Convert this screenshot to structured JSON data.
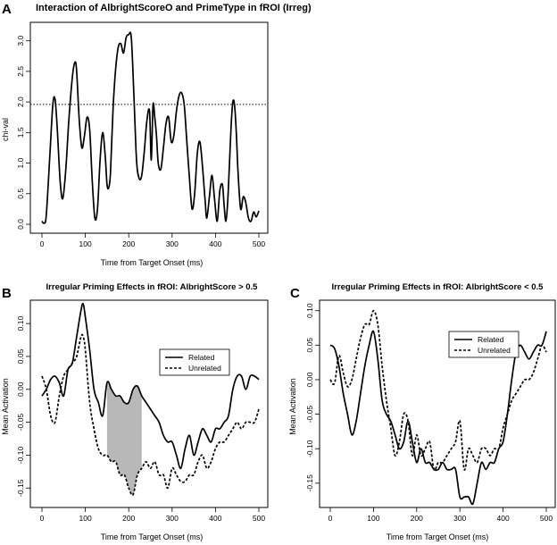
{
  "colors": {
    "line": "#000000",
    "shade": "#b8b8b8",
    "background": "#ffffff"
  },
  "chart_data": [
    {
      "panel": "A",
      "type": "line",
      "title": "Interaction of AlbrightScoreO and PrimeType in fROI (Irreg)",
      "xlabel": "Time from Target Onset (ms)",
      "ylabel": "chi-val",
      "xlim": [
        0,
        500
      ],
      "ylim": [
        0,
        3.2
      ],
      "xticks": [
        "0",
        "100",
        "200",
        "300",
        "400",
        "500"
      ],
      "yticks": [
        "0.0",
        "0.5",
        "1.0",
        "1.5",
        "2.0",
        "2.5",
        "3.0"
      ],
      "reference_line": {
        "y": 1.96,
        "style": "dotted"
      },
      "series": [
        {
          "name": "chi-val",
          "style": "solid",
          "x": [
            0,
            5,
            10,
            18,
            25,
            30,
            35,
            42,
            48,
            55,
            62,
            70,
            76,
            80,
            86,
            92,
            98,
            104,
            110,
            116,
            122,
            128,
            134,
            140,
            146,
            150,
            154,
            158,
            164,
            170,
            176,
            182,
            188,
            194,
            200,
            206,
            212,
            218,
            224,
            230,
            236,
            242,
            248,
            252,
            256,
            260,
            264,
            268,
            274,
            280,
            286,
            292,
            298,
            304,
            310,
            316,
            322,
            328,
            334,
            340,
            346,
            352,
            358,
            364,
            370,
            376,
            380,
            386,
            392,
            398,
            404,
            410,
            416,
            420,
            424,
            428,
            432,
            436,
            440,
            444,
            448,
            452,
            458,
            464,
            470,
            476,
            482,
            488,
            494,
            500
          ],
          "y": [
            0.05,
            0.02,
            0.15,
            1.1,
            1.95,
            2.05,
            1.6,
            0.7,
            0.42,
            0.9,
            1.7,
            2.4,
            2.65,
            2.5,
            1.7,
            1.25,
            1.45,
            1.75,
            1.55,
            0.7,
            0.1,
            0.25,
            1.05,
            1.5,
            1.1,
            0.65,
            0.6,
            0.85,
            1.9,
            2.55,
            2.9,
            2.95,
            2.8,
            3.05,
            3.1,
            3.05,
            2.1,
            1.05,
            0.75,
            0.8,
            1.2,
            1.7,
            1.85,
            1.05,
            1.95,
            1.75,
            1.45,
            1.0,
            0.9,
            1.25,
            1.65,
            1.75,
            1.35,
            1.45,
            1.85,
            2.1,
            2.15,
            1.95,
            1.35,
            0.75,
            0.25,
            0.5,
            1.15,
            1.35,
            0.95,
            0.4,
            0.1,
            0.45,
            0.8,
            0.4,
            0.05,
            0.55,
            0.65,
            0.3,
            0.05,
            0.35,
            0.95,
            1.6,
            2.0,
            1.95,
            1.5,
            0.85,
            0.25,
            0.45,
            0.35,
            0.1,
            0.05,
            0.2,
            0.12,
            0.22
          ]
        }
      ]
    },
    {
      "panel": "B",
      "type": "line",
      "title": "Irregular Priming Effects in fROI: AlbrightScore > 0.5",
      "xlabel": "Time from Target Onset (ms)",
      "ylabel": "Mean Activation",
      "xlim": [
        0,
        500
      ],
      "ylim": [
        -0.17,
        0.13
      ],
      "xticks": [
        "0",
        "100",
        "200",
        "300",
        "400",
        "500"
      ],
      "yticks": [
        "-0.15",
        "-0.10",
        "-0.05",
        "0.00",
        "0.05",
        "0.10"
      ],
      "shaded_region": {
        "x_range": [
          150,
          230
        ],
        "between": [
          "Related",
          "Unrelated"
        ]
      },
      "legend": {
        "position": "right",
        "entries": [
          "Related",
          "Unrelated"
        ]
      },
      "series": [
        {
          "name": "Related",
          "style": "solid",
          "x": [
            0,
            10,
            20,
            30,
            40,
            50,
            60,
            70,
            80,
            90,
            95,
            100,
            110,
            120,
            130,
            140,
            150,
            160,
            170,
            180,
            190,
            200,
            210,
            220,
            230,
            240,
            250,
            260,
            270,
            280,
            290,
            300,
            310,
            320,
            330,
            340,
            350,
            360,
            370,
            380,
            390,
            400,
            410,
            420,
            430,
            440,
            450,
            460,
            470,
            480,
            490,
            500
          ],
          "y": [
            -0.01,
            0.0,
            0.015,
            0.02,
            0.01,
            -0.01,
            0.03,
            0.04,
            0.08,
            0.12,
            0.13,
            0.11,
            0.06,
            0.0,
            -0.02,
            -0.04,
            0.01,
            0.0,
            -0.01,
            -0.01,
            -0.02,
            -0.02,
            0.0,
            0.005,
            -0.01,
            -0.02,
            -0.03,
            -0.04,
            -0.05,
            -0.07,
            -0.08,
            -0.08,
            -0.1,
            -0.12,
            -0.09,
            -0.07,
            -0.1,
            -0.08,
            -0.06,
            -0.07,
            -0.08,
            -0.06,
            -0.06,
            -0.05,
            -0.04,
            0.0,
            0.02,
            0.02,
            0.0,
            0.02,
            0.02,
            0.015
          ]
        },
        {
          "name": "Unrelated",
          "style": "dashed",
          "x": [
            0,
            10,
            20,
            30,
            40,
            50,
            60,
            70,
            80,
            90,
            95,
            100,
            110,
            120,
            130,
            140,
            150,
            160,
            170,
            180,
            190,
            200,
            210,
            220,
            230,
            240,
            250,
            260,
            270,
            280,
            290,
            300,
            310,
            320,
            330,
            340,
            350,
            360,
            370,
            380,
            390,
            400,
            410,
            420,
            430,
            440,
            450,
            460,
            470,
            480,
            490,
            500
          ],
          "y": [
            0.02,
            0.0,
            -0.04,
            -0.05,
            -0.01,
            0.02,
            0.03,
            0.04,
            0.05,
            0.08,
            0.08,
            0.06,
            -0.02,
            -0.06,
            -0.09,
            -0.1,
            -0.1,
            -0.11,
            -0.11,
            -0.13,
            -0.13,
            -0.15,
            -0.16,
            -0.13,
            -0.12,
            -0.11,
            -0.12,
            -0.11,
            -0.13,
            -0.13,
            -0.15,
            -0.12,
            -0.13,
            -0.14,
            -0.14,
            -0.13,
            -0.13,
            -0.11,
            -0.1,
            -0.12,
            -0.11,
            -0.09,
            -0.08,
            -0.08,
            -0.07,
            -0.06,
            -0.05,
            -0.06,
            -0.05,
            -0.05,
            -0.05,
            -0.03
          ]
        }
      ]
    },
    {
      "panel": "C",
      "type": "line",
      "title": "Irregular Priming Effects in fROI: AlbrightScore < 0.5",
      "xlabel": "Time from Target Onset (ms)",
      "ylabel": "Mean Activation",
      "xlim": [
        0,
        500
      ],
      "ylim": [
        -0.18,
        0.11
      ],
      "xticks": [
        "0",
        "100",
        "200",
        "300",
        "400",
        "500"
      ],
      "yticks": [
        "-0.15",
        "-0.10",
        "-0.05",
        "0.00",
        "0.05",
        "0.10"
      ],
      "legend": {
        "position": "top-right",
        "entries": [
          "Related",
          "Unrelated"
        ]
      },
      "series": [
        {
          "name": "Related",
          "style": "solid",
          "x": [
            0,
            10,
            20,
            30,
            40,
            50,
            60,
            70,
            80,
            90,
            100,
            110,
            120,
            130,
            140,
            150,
            160,
            170,
            180,
            190,
            200,
            210,
            220,
            230,
            240,
            250,
            260,
            270,
            280,
            290,
            300,
            310,
            320,
            330,
            340,
            350,
            360,
            370,
            380,
            390,
            400,
            410,
            420,
            430,
            440,
            450,
            460,
            470,
            480,
            490,
            500
          ],
          "y": [
            0.05,
            0.045,
            0.02,
            -0.02,
            -0.05,
            -0.08,
            -0.06,
            -0.02,
            0.02,
            0.05,
            0.07,
            0.03,
            -0.03,
            -0.05,
            -0.06,
            -0.08,
            -0.1,
            -0.09,
            -0.06,
            -0.09,
            -0.12,
            -0.1,
            -0.12,
            -0.12,
            -0.13,
            -0.13,
            -0.12,
            -0.13,
            -0.13,
            -0.13,
            -0.17,
            -0.17,
            -0.17,
            -0.18,
            -0.15,
            -0.12,
            -0.13,
            -0.12,
            -0.12,
            -0.1,
            -0.09,
            -0.05,
            0.0,
            0.04,
            0.05,
            0.04,
            0.03,
            0.04,
            0.05,
            0.05,
            0.07
          ]
        },
        {
          "name": "Unrelated",
          "style": "dashed",
          "x": [
            0,
            10,
            20,
            30,
            40,
            50,
            60,
            70,
            80,
            90,
            100,
            110,
            120,
            130,
            140,
            150,
            160,
            170,
            180,
            190,
            200,
            210,
            220,
            230,
            240,
            250,
            260,
            270,
            280,
            290,
            300,
            310,
            320,
            330,
            340,
            350,
            360,
            370,
            380,
            390,
            400,
            410,
            420,
            430,
            440,
            450,
            460,
            470,
            480,
            490,
            500
          ],
          "y": [
            0.0,
            -0.005,
            0.035,
            0.01,
            -0.01,
            0.0,
            0.03,
            0.06,
            0.08,
            0.08,
            0.1,
            0.08,
            0.02,
            -0.03,
            -0.07,
            -0.11,
            -0.09,
            -0.05,
            -0.06,
            -0.11,
            -0.08,
            -0.11,
            -0.1,
            -0.09,
            -0.13,
            -0.12,
            -0.12,
            -0.11,
            -0.1,
            -0.09,
            -0.06,
            -0.13,
            -0.1,
            -0.11,
            -0.12,
            -0.1,
            -0.1,
            -0.11,
            -0.1,
            -0.1,
            -0.07,
            -0.05,
            -0.03,
            -0.02,
            -0.01,
            0.0,
            0.0,
            0.01,
            0.03,
            0.05,
            0.04
          ]
        }
      ]
    }
  ]
}
